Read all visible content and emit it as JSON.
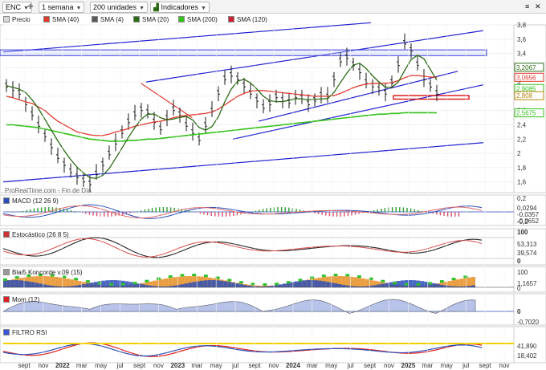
{
  "toolbar": {
    "symbol": "ENC",
    "period": "1 semana",
    "units": "200 unidades",
    "indicators": "Indicadores"
  },
  "legend": [
    {
      "label": "Precio",
      "color": "#d9d9d9"
    },
    {
      "label": "SMA (40)",
      "color": "#e03a2f"
    },
    {
      "label": "SMA (4)",
      "color": "#5a5a5a"
    },
    {
      "label": "SMA (20)",
      "color": "#2c6b14"
    },
    {
      "label": "SMA (200)",
      "color": "#34c21b"
    },
    {
      "label": "SMA (120)",
      "color": "#cc1f2f"
    }
  ],
  "watermark": "ProRealTime.com - Fin de Día",
  "panels": {
    "macd": {
      "label": "MACD (12 26 9)",
      "ticks": [
        "0,2",
        "-0,2"
      ],
      "badges": [
        "0,0294",
        "-0,0357",
        "-0,0652"
      ]
    },
    "stoch": {
      "label": "Estocástico (26 8 5)",
      "ticks": [
        "100",
        "0"
      ],
      "badges": [
        "53,313",
        "39,574"
      ]
    },
    "blai": {
      "label": "Blai5 Koncorde v.09 (15)",
      "ticks": [
        "100",
        "0"
      ],
      "badges": [
        "1,1657"
      ]
    },
    "mom": {
      "label": "Mom (12)",
      "ticks": [
        "0"
      ],
      "badges": [
        "-0,7020"
      ]
    },
    "rsi": {
      "label": "FILTRO RSI",
      "badges": [
        "41,890",
        "18,402"
      ]
    }
  },
  "colors": {
    "up": "#111111",
    "down": "#111111",
    "channel": "#1f1fd1",
    "sma40": "#e03a2f",
    "sma20": "#2c6b14",
    "sma200": "#34c21b",
    "sma120": "#cc1f2f",
    "resistance_box": "#3b3bd6",
    "support_box": "#e00000"
  },
  "chart_data": [
    {
      "type": "line",
      "title": "ENC",
      "ylim": [
        1.45,
        3.8
      ],
      "y_ticks": [
        "3,8",
        "3,6",
        "3,4",
        "3,2",
        "3",
        "2,8",
        "2,6",
        "2,4",
        "2,2",
        "2",
        "1,8",
        "1,6"
      ],
      "price_badges": [
        {
          "label": "3,2067",
          "value": 3.2067,
          "color": "#2c6b14"
        },
        {
          "label": "3,0656",
          "value": 3.0656,
          "color": "#e03a2f"
        },
        {
          "label": "2,9085",
          "value": 2.9085,
          "color": "#34c21b"
        },
        {
          "label": "2,808",
          "value": 2.808,
          "color": "#b8860b"
        },
        {
          "label": "2,5675",
          "value": 2.5675,
          "color": "#34c21b"
        }
      ],
      "x_labels": [
        "sept",
        "nov",
        "2022",
        "mar",
        "may",
        "jul",
        "sept",
        "nov",
        "2023",
        "mar",
        "may",
        "jul",
        "sept",
        "nov",
        "2024",
        "mar",
        "may",
        "jul",
        "sept",
        "nov",
        "2025",
        "mar",
        "may",
        "jul",
        "sept",
        "nov"
      ],
      "series": [
        {
          "name": "Precio",
          "values": [
            2.95,
            2.9,
            2.85,
            2.7,
            2.55,
            2.4,
            2.25,
            2.1,
            1.95,
            1.85,
            1.75,
            1.68,
            1.62,
            1.58,
            1.72,
            1.85,
            2.0,
            2.15,
            2.3,
            2.45,
            2.55,
            2.62,
            2.58,
            2.45,
            2.35,
            2.5,
            2.62,
            2.55,
            2.4,
            2.3,
            2.2,
            2.4,
            2.6,
            2.85,
            3.05,
            3.1,
            3.05,
            2.95,
            2.85,
            2.75,
            2.65,
            2.7,
            2.8,
            2.75,
            2.72,
            2.8,
            2.78,
            2.7,
            2.75,
            2.82,
            2.8,
            3.05,
            3.3,
            3.35,
            3.25,
            3.15,
            3.0,
            2.95,
            2.9,
            2.85,
            3.0,
            3.25,
            3.55,
            3.45,
            3.25,
            3.05,
            2.95,
            2.85
          ]
        },
        {
          "name": "SMA (40)",
          "values": [
            2.8,
            2.78,
            2.75,
            2.72,
            2.7,
            2.65,
            2.6,
            2.52,
            2.45,
            2.4,
            2.35,
            2.3,
            2.28,
            2.26,
            2.25,
            2.25,
            2.27,
            2.3,
            2.32,
            2.35,
            2.38,
            2.4,
            2.42,
            2.44,
            2.45,
            2.47,
            2.5,
            2.52,
            2.53,
            2.54,
            2.55,
            2.56,
            2.58,
            2.62,
            2.68,
            2.74,
            2.8,
            2.84,
            2.87,
            2.88,
            2.88,
            2.87,
            2.86,
            2.85,
            2.84,
            2.83,
            2.82,
            2.81,
            2.8,
            2.8,
            2.8,
            2.81,
            2.84,
            2.88,
            2.92,
            2.95,
            2.97,
            2.98,
            2.98,
            2.98,
            2.99,
            3.02,
            3.06,
            3.09,
            3.09,
            3.08,
            3.07,
            3.0656
          ]
        },
        {
          "name": "SMA (200)",
          "values": [
            2.4,
            2.4,
            2.39,
            2.38,
            2.37,
            2.36,
            2.34,
            2.32,
            2.3,
            2.28,
            2.26,
            2.24,
            2.22,
            2.2,
            2.19,
            2.18,
            2.17,
            2.17,
            2.17,
            2.18,
            2.18,
            2.19,
            2.2,
            2.2,
            2.21,
            2.22,
            2.23,
            2.24,
            2.25,
            2.26,
            2.27,
            2.28,
            2.29,
            2.3,
            2.31,
            2.32,
            2.33,
            2.34,
            2.35,
            2.36,
            2.37,
            2.38,
            2.39,
            2.4,
            2.41,
            2.42,
            2.43,
            2.44,
            2.45,
            2.46,
            2.47,
            2.48,
            2.49,
            2.5,
            2.51,
            2.52,
            2.53,
            2.54,
            2.55,
            2.55,
            2.56,
            2.56,
            2.57,
            2.57,
            2.57,
            2.57,
            2.57,
            2.5675
          ]
        }
      ]
    }
  ]
}
